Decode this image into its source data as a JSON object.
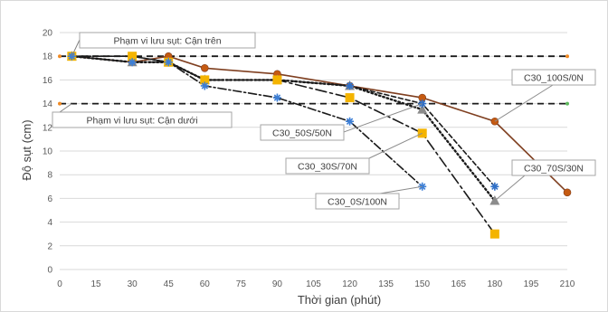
{
  "chart_data": {
    "type": "line",
    "title": "",
    "xlabel": "Thời gian (phút)",
    "ylabel": "Độ sụt (cm)",
    "xlim": [
      0,
      210
    ],
    "ylim": [
      0,
      20
    ],
    "xticks": [
      0,
      15,
      30,
      45,
      60,
      75,
      90,
      105,
      120,
      135,
      150,
      165,
      180,
      195,
      210
    ],
    "yticks": [
      0,
      2,
      4,
      6,
      8,
      10,
      12,
      14,
      16,
      18,
      20
    ],
    "grid": "horizontal",
    "legend": "none",
    "series": [
      {
        "name": "C30_100S/0N",
        "color": "#7f3f20",
        "dash": "solid",
        "marker": "circle",
        "marker_color": "#c55a11",
        "points": [
          [
            5,
            18
          ],
          [
            30,
            17.5
          ],
          [
            45,
            18
          ],
          [
            60,
            17
          ],
          [
            90,
            16.5
          ],
          [
            120,
            15.5
          ],
          [
            150,
            14.5
          ],
          [
            180,
            12.5
          ],
          [
            210,
            6.5
          ]
        ]
      },
      {
        "name": "C30_70S/30N",
        "color": "#1a1a1a",
        "dash": "dotted",
        "marker": "triangle",
        "marker_color": "#8c8c8c",
        "points": [
          [
            5,
            18
          ],
          [
            30,
            17.5
          ],
          [
            45,
            17.5
          ],
          [
            60,
            16
          ],
          [
            90,
            16
          ],
          [
            120,
            15.5
          ],
          [
            150,
            13.5
          ],
          [
            180,
            5.8
          ]
        ]
      },
      {
        "name": "C30_50S/50N",
        "color": "#1a1a1a",
        "dash": "dashed",
        "marker": "star",
        "marker_color": "#2f6fc7",
        "points": [
          [
            5,
            18
          ],
          [
            30,
            18
          ],
          [
            45,
            17.5
          ],
          [
            60,
            16
          ],
          [
            90,
            16
          ],
          [
            120,
            15.5
          ],
          [
            150,
            14
          ],
          [
            180,
            7
          ]
        ]
      },
      {
        "name": "C30_30S/70N",
        "color": "#1a1a1a",
        "dash": "longdashdot",
        "marker": "square",
        "marker_color": "#f4b400",
        "points": [
          [
            5,
            18
          ],
          [
            30,
            18
          ],
          [
            45,
            17.5
          ],
          [
            60,
            16
          ],
          [
            90,
            16
          ],
          [
            120,
            14.5
          ],
          [
            150,
            11.5
          ],
          [
            180,
            3
          ]
        ]
      },
      {
        "name": "C30_0S/100N",
        "color": "#1a1a1a",
        "dash": "dashdot",
        "marker": "star",
        "marker_color": "#3d7fd6",
        "points": [
          [
            5,
            18
          ],
          [
            30,
            17.5
          ],
          [
            45,
            17.5
          ],
          [
            60,
            15.5
          ],
          [
            90,
            14.5
          ],
          [
            120,
            12.5
          ],
          [
            150,
            7
          ]
        ]
      }
    ],
    "reference_lines": [
      {
        "label": "Phạm vi lưu sụt: Cận trên",
        "y": 18
      },
      {
        "label": "Phạm vi lưu sụt: Cận dưới",
        "y": 14
      }
    ],
    "annotations": [
      {
        "text": "C30_100S/0N",
        "target_series": 0,
        "target_point": 7
      },
      {
        "text": "C30_70S/30N",
        "target_series": 1,
        "target_point": 7
      },
      {
        "text": "C30_50S/50N",
        "target_series": 2,
        "target_point": 6
      },
      {
        "text": "C30_30S/70N",
        "target_series": 3,
        "target_point": 6
      },
      {
        "text": "C30_0S/100N",
        "target_series": 4,
        "target_point": 6
      }
    ]
  }
}
